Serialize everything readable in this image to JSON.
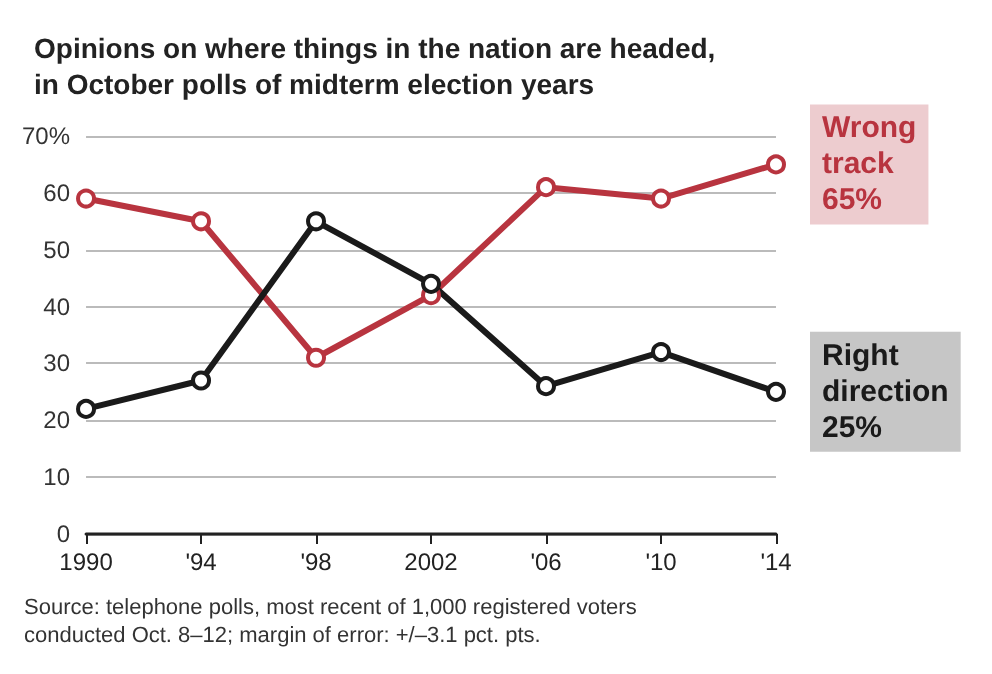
{
  "chart_data": {
    "type": "line",
    "title": "Opinions on where things in the nation are headed,\nin October polls of midterm election years",
    "categories": [
      "1990",
      "'94",
      "'98",
      "2002",
      "'06",
      "'10",
      "'14"
    ],
    "series": [
      {
        "name": "Wrong track",
        "color": "#b8343f",
        "values": [
          59,
          55,
          31,
          42,
          61,
          59,
          65
        ],
        "value_labels": [
          null,
          null,
          null,
          null,
          null,
          null,
          "65%"
        ]
      },
      {
        "name": "Right direction",
        "color": "#1a1a1a",
        "values": [
          22,
          27,
          55,
          44,
          26,
          32,
          25
        ],
        "value_labels": [
          null,
          null,
          null,
          null,
          null,
          null,
          "25%"
        ]
      }
    ],
    "ylim": [
      0,
      70
    ],
    "yticks": [
      0,
      10,
      20,
      30,
      40,
      50,
      60,
      {
        "value": 70,
        "label": "70%"
      }
    ],
    "grid": "y",
    "legend": false,
    "marker": "circle",
    "line_style": "solid",
    "annotations": [
      "Source: telephone polls, most recent of 1,000 registered voters\nconducted Oct. 8–12; margin of error: +/–3.1 pct. pts."
    ]
  }
}
